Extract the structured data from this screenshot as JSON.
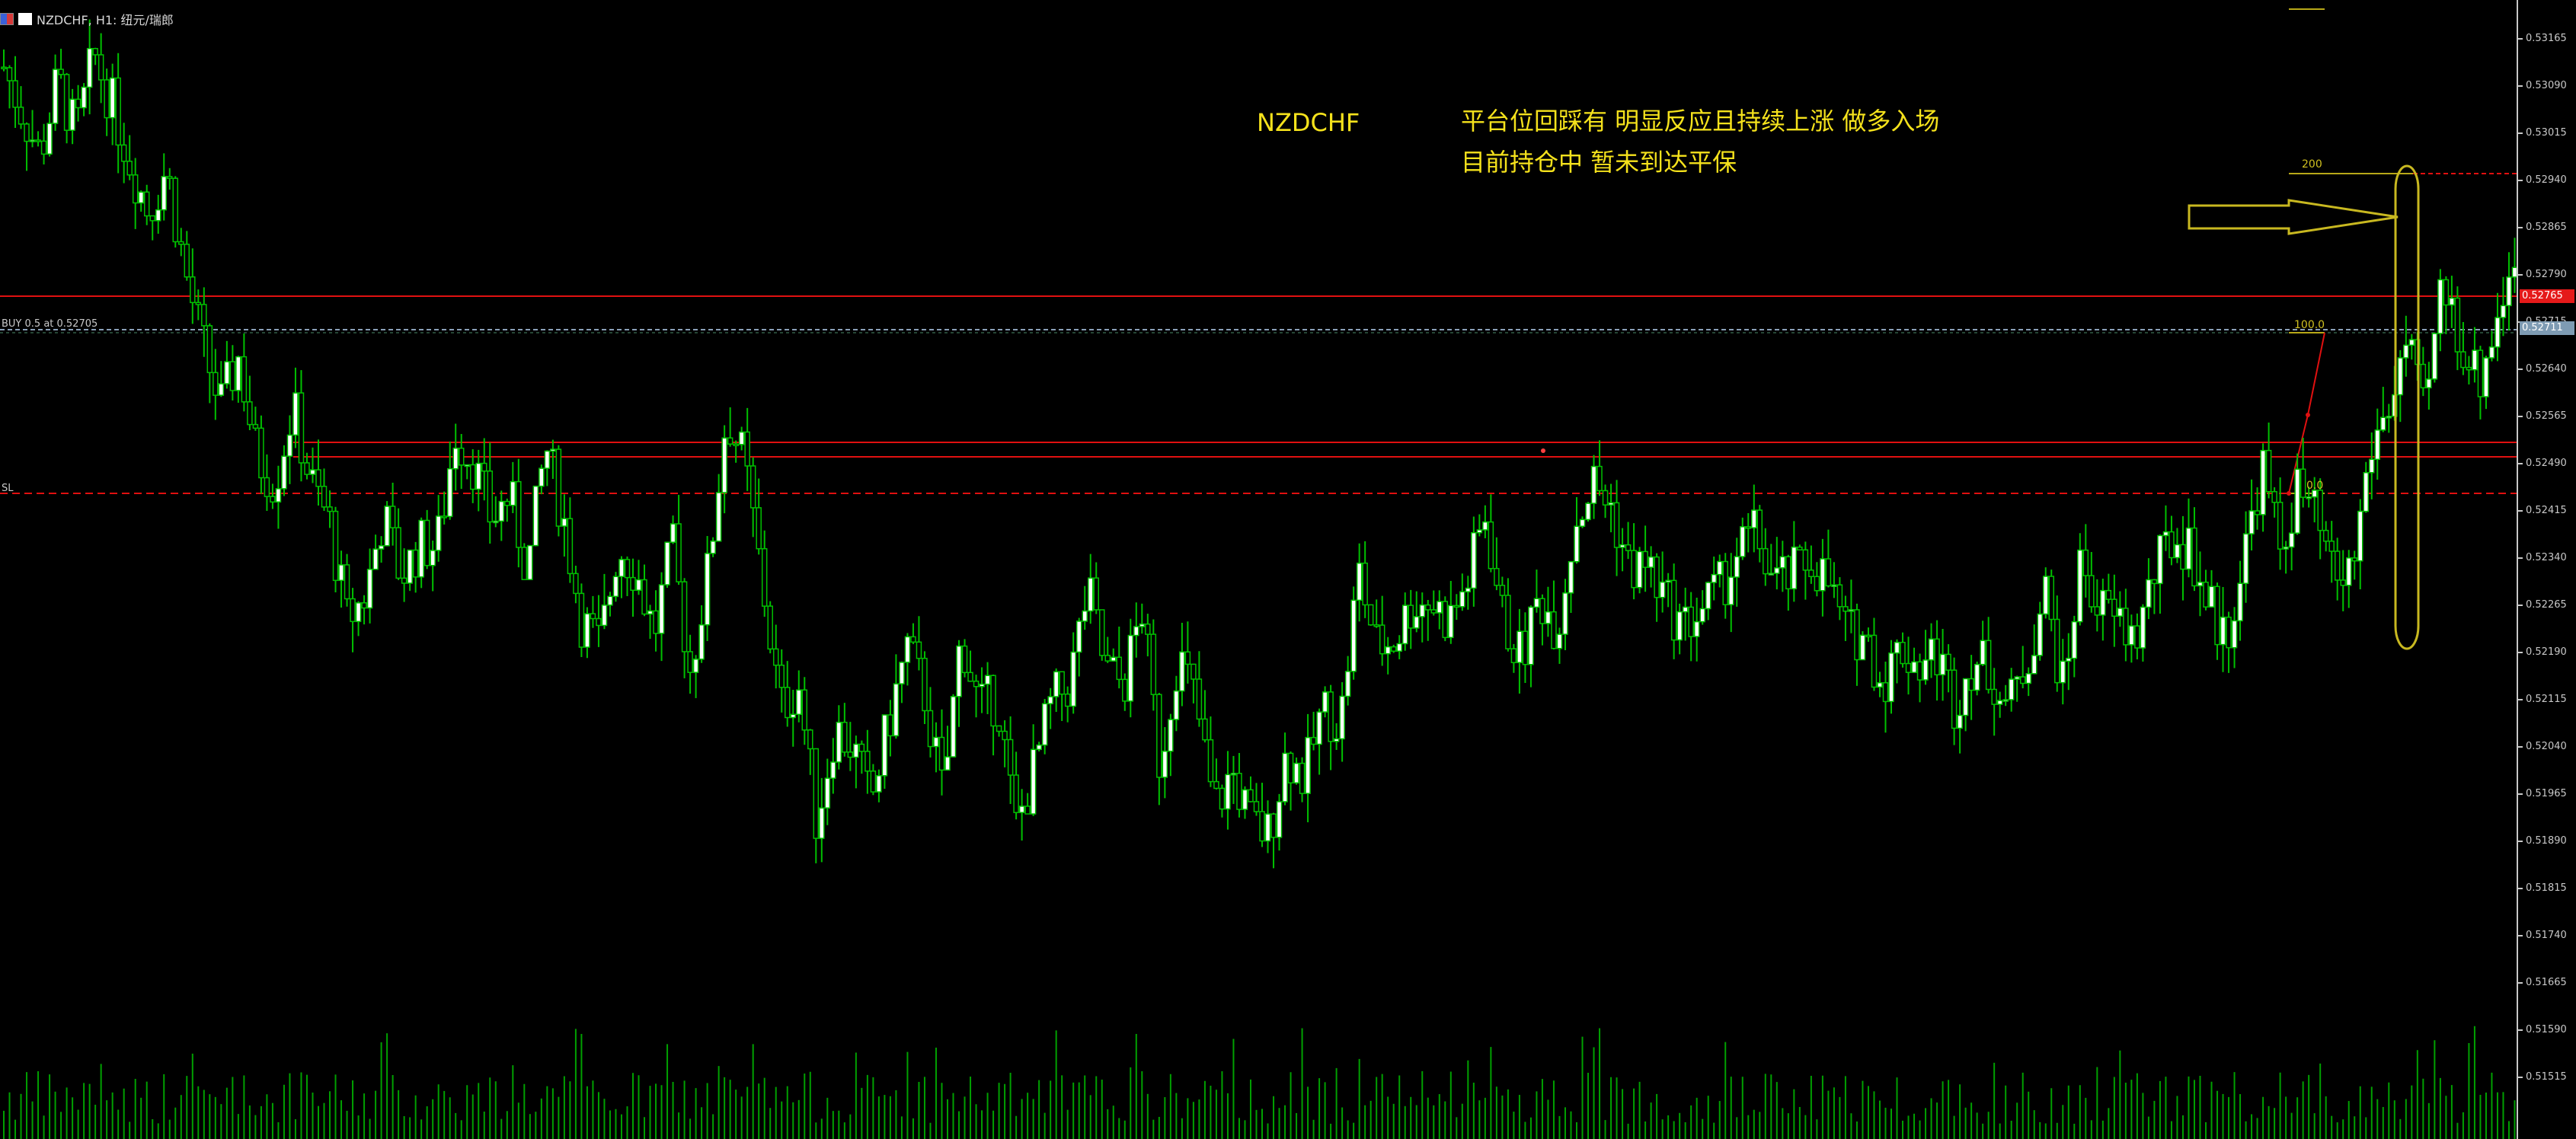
{
  "window": {
    "title": "NZDCHF, H1:  纽元/瑞郎"
  },
  "annotations": {
    "symbol": "NZDCHF",
    "note_line1": "平台位回踩有 明显反应且持续上涨 做多入场",
    "note_line2": "目前持仓中 暂未到达平保"
  },
  "order_lines": {
    "buy_label": "BUY 0.5 at 0.52705",
    "sl_label": "SL"
  },
  "fibonacci": {
    "level_200": "200",
    "level_100": "100.0",
    "level_0": "0.0"
  },
  "price_tags": {
    "current": "0.52765",
    "order": "0.52711"
  },
  "colors": {
    "background": "#000000",
    "bull_candle": "#ffffff",
    "bear_candle": "#00c000",
    "wick": "#00c000",
    "volume": "#00a000",
    "horizontal_red": "#e01010",
    "annotation_yellow": "#f5e21c",
    "order_line": "#8aa0b8"
  },
  "chart_data": {
    "type": "candlestick",
    "symbol": "NZDCHF",
    "timeframe": "H1",
    "price_axis_ticks": [
      "0.53165",
      "0.53090",
      "0.53015",
      "0.52940",
      "0.52865",
      "0.52790",
      "0.52715",
      "0.52640",
      "0.52565",
      "0.52490",
      "0.52415",
      "0.52340",
      "0.52265",
      "0.52190",
      "0.52115",
      "0.52040",
      "0.51965",
      "0.51890",
      "0.51815",
      "0.51740",
      "0.51665",
      "0.51590",
      "0.51515"
    ],
    "ylim": [
      0.5146,
      0.532
    ],
    "horizontal_levels": [
      0.52765,
      0.52536,
      0.52514,
      0.52455
    ],
    "buy_price": 0.52705,
    "series_close": [
      0.5312,
      0.5305,
      0.5298,
      0.531,
      0.5301,
      0.5314,
      0.5306,
      0.5297,
      0.5289,
      0.5296,
      0.528,
      0.5268,
      0.5258,
      0.5266,
      0.525,
      0.5246,
      0.5258,
      0.5246,
      0.524,
      0.5224,
      0.5228,
      0.5241,
      0.5231,
      0.5236,
      0.5236,
      0.5254,
      0.5249,
      0.524,
      0.5244,
      0.5232,
      0.5252,
      0.524,
      0.5224,
      0.522,
      0.5236,
      0.5232,
      0.5222,
      0.5236,
      0.5216,
      0.5232,
      0.5257,
      0.5249,
      0.523,
      0.521,
      0.5214,
      0.5192,
      0.5207,
      0.5204,
      0.5195,
      0.5208,
      0.522,
      0.5212,
      0.5196,
      0.5222,
      0.521,
      0.5212,
      0.5191,
      0.52,
      0.5211,
      0.5214,
      0.5229,
      0.5216,
      0.5214,
      0.5226,
      0.5201,
      0.5219,
      0.5211,
      0.5194,
      0.52,
      0.5192,
      0.519,
      0.5203,
      0.5199,
      0.521,
      0.5208,
      0.5232,
      0.522,
      0.5221,
      0.5227,
      0.5227,
      0.5224,
      0.523,
      0.5241,
      0.5224,
      0.5218,
      0.5228,
      0.5223,
      0.524,
      0.5246,
      0.5242,
      0.5232,
      0.5233,
      0.5227,
      0.5223,
      0.5226,
      0.5229,
      0.5235,
      0.5238,
      0.523,
      0.5231,
      0.5234,
      0.523,
      0.5222,
      0.5222,
      0.5214,
      0.522,
      0.5217,
      0.5219,
      0.5211,
      0.5218,
      0.5216,
      0.521,
      0.5218,
      0.5229,
      0.5213,
      0.5234,
      0.5226,
      0.5224,
      0.5221,
      0.5231,
      0.5237,
      0.5236,
      0.5227,
      0.5221,
      0.5234,
      0.5249,
      0.5235,
      0.5245,
      0.524,
      0.523,
      0.5232,
      0.5251,
      0.5258,
      0.5268,
      0.5256,
      0.5278,
      0.5269,
      0.5262,
      0.5272,
      0.5283
    ]
  }
}
